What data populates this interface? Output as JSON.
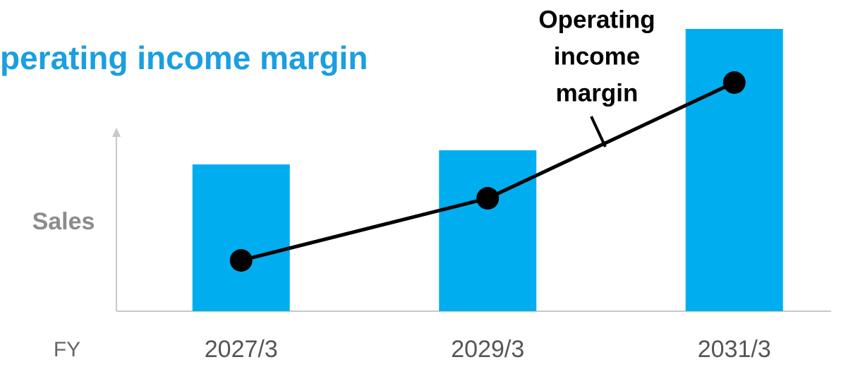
{
  "chart_data": {
    "type": "bar",
    "title": "perating income margin",
    "y_label": "Sales",
    "x_label": "FY",
    "annotation": [
      "Operating",
      "income",
      "margin"
    ],
    "categories": [
      "2027/3",
      "2029/3",
      "2031/3"
    ],
    "series": [
      {
        "name": "Sales",
        "type": "bar",
        "color": "#00aeef",
        "values": [
          52,
          57,
          100
        ]
      },
      {
        "name": "Operating income margin",
        "type": "line",
        "axis": "y2",
        "color": "#000000",
        "values": [
          18,
          40,
          81
        ]
      }
    ],
    "ylim": [
      0,
      100
    ],
    "y2lim": [
      0,
      100
    ]
  }
}
